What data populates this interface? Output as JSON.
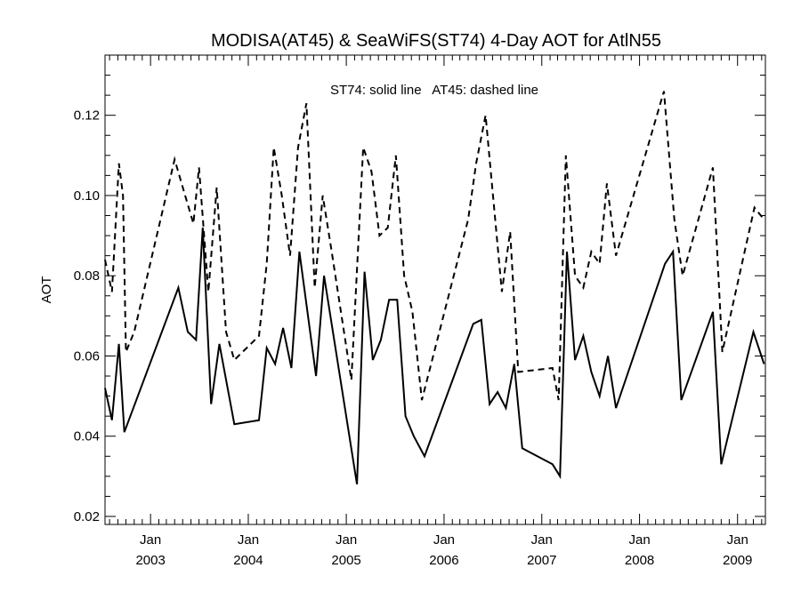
{
  "chart_data": {
    "type": "line",
    "title": "MODISA(AT45) & SeaWiFS(ST74) 4-Day AOT for AtlN55",
    "ylabel": "AOT",
    "xlabel": "",
    "annotation": "ST74: solid line   AT45: dashed line",
    "x_range": [
      "2002-07-15",
      "2009-04-15"
    ],
    "ylim": [
      0.018,
      0.135
    ],
    "y_ticks": [
      0.02,
      0.04,
      0.06,
      0.08,
      0.1,
      0.12
    ],
    "y_tick_labels": [
      "0.02",
      "0.04",
      "0.06",
      "0.08",
      "0.10",
      "0.12"
    ],
    "x_ticks": [
      {
        "date": "2003-01-01",
        "month": "Jan",
        "year": "2003"
      },
      {
        "date": "2004-01-01",
        "month": "Jan",
        "year": "2004"
      },
      {
        "date": "2005-01-01",
        "month": "Jan",
        "year": "2005"
      },
      {
        "date": "2006-01-01",
        "month": "Jan",
        "year": "2006"
      },
      {
        "date": "2007-01-01",
        "month": "Jan",
        "year": "2007"
      },
      {
        "date": "2008-01-01",
        "month": "Jan",
        "year": "2008"
      },
      {
        "date": "2009-01-01",
        "month": "Jan",
        "year": "2009"
      }
    ],
    "grid": false,
    "series": [
      {
        "name": "ST74",
        "style": "solid",
        "color": "#000000",
        "points": [
          [
            "2002-07-15",
            0.052
          ],
          [
            "2002-08-10",
            0.044
          ],
          [
            "2002-09-05",
            0.063
          ],
          [
            "2002-09-25",
            0.041
          ],
          [
            "2003-04-15",
            0.077
          ],
          [
            "2003-05-20",
            0.066
          ],
          [
            "2003-06-20",
            0.064
          ],
          [
            "2003-07-15",
            0.092
          ],
          [
            "2003-08-15",
            0.048
          ],
          [
            "2003-09-15",
            0.063
          ],
          [
            "2003-11-10",
            0.043
          ],
          [
            "2004-02-10",
            0.044
          ],
          [
            "2004-03-10",
            0.062
          ],
          [
            "2004-04-10",
            0.058
          ],
          [
            "2004-05-10",
            0.067
          ],
          [
            "2004-06-10",
            0.057
          ],
          [
            "2004-07-10",
            0.086
          ],
          [
            "2004-09-10",
            0.055
          ],
          [
            "2004-10-10",
            0.08
          ],
          [
            "2005-02-10",
            0.028
          ],
          [
            "2005-03-10",
            0.081
          ],
          [
            "2005-04-10",
            0.059
          ],
          [
            "2005-05-10",
            0.064
          ],
          [
            "2005-06-10",
            0.074
          ],
          [
            "2005-07-10",
            0.074
          ],
          [
            "2005-08-10",
            0.045
          ],
          [
            "2005-09-10",
            0.04
          ],
          [
            "2005-10-20",
            0.035
          ],
          [
            "2006-04-20",
            0.068
          ],
          [
            "2006-05-20",
            0.069
          ],
          [
            "2006-06-20",
            0.048
          ],
          [
            "2006-07-20",
            0.051
          ],
          [
            "2006-08-20",
            0.047
          ],
          [
            "2006-09-20",
            0.058
          ],
          [
            "2006-10-20",
            0.037
          ],
          [
            "2007-02-10",
            0.033
          ],
          [
            "2007-03-10",
            0.03
          ],
          [
            "2007-04-05",
            0.086
          ],
          [
            "2007-05-05",
            0.059
          ],
          [
            "2007-06-05",
            0.065
          ],
          [
            "2007-07-05",
            0.056
          ],
          [
            "2007-08-05",
            0.05
          ],
          [
            "2007-09-05",
            0.06
          ],
          [
            "2007-10-05",
            0.047
          ],
          [
            "2008-04-05",
            0.083
          ],
          [
            "2008-05-05",
            0.086
          ],
          [
            "2008-06-05",
            0.049
          ],
          [
            "2008-10-01",
            0.071
          ],
          [
            "2008-11-01",
            0.033
          ],
          [
            "2009-03-01",
            0.066
          ],
          [
            "2009-04-10",
            0.058
          ]
        ]
      },
      {
        "name": "AT45",
        "style": "dashed",
        "color": "#000000",
        "points": [
          [
            "2002-07-15",
            0.084
          ],
          [
            "2002-08-10",
            0.076
          ],
          [
            "2002-09-05",
            0.108
          ],
          [
            "2002-09-20",
            0.1
          ],
          [
            "2002-10-01",
            0.061
          ],
          [
            "2002-11-01",
            0.066
          ],
          [
            "2003-04-01",
            0.109
          ],
          [
            "2003-05-10",
            0.1
          ],
          [
            "2003-06-10",
            0.093
          ],
          [
            "2003-07-01",
            0.107
          ],
          [
            "2003-08-05",
            0.076
          ],
          [
            "2003-09-05",
            0.102
          ],
          [
            "2003-10-10",
            0.066
          ],
          [
            "2003-11-10",
            0.059
          ],
          [
            "2004-02-10",
            0.065
          ],
          [
            "2004-03-10",
            0.083
          ],
          [
            "2004-04-05",
            0.112
          ],
          [
            "2004-05-05",
            0.1
          ],
          [
            "2004-06-05",
            0.085
          ],
          [
            "2004-07-05",
            0.112
          ],
          [
            "2004-08-05",
            0.123
          ],
          [
            "2004-09-05",
            0.077
          ],
          [
            "2004-10-05",
            0.1
          ],
          [
            "2004-11-05",
            0.087
          ],
          [
            "2005-01-20",
            0.054
          ],
          [
            "2005-03-05",
            0.112
          ],
          [
            "2005-04-05",
            0.106
          ],
          [
            "2005-05-05",
            0.09
          ],
          [
            "2005-06-05",
            0.092
          ],
          [
            "2005-07-05",
            0.11
          ],
          [
            "2005-08-05",
            0.08
          ],
          [
            "2005-09-05",
            0.071
          ],
          [
            "2005-10-10",
            0.049
          ],
          [
            "2006-04-01",
            0.094
          ],
          [
            "2006-05-01",
            0.108
          ],
          [
            "2006-06-05",
            0.12
          ],
          [
            "2006-08-05",
            0.076
          ],
          [
            "2006-09-05",
            0.091
          ],
          [
            "2006-10-05",
            0.056
          ],
          [
            "2007-02-10",
            0.057
          ],
          [
            "2007-03-05",
            0.049
          ],
          [
            "2007-04-01",
            0.11
          ],
          [
            "2007-05-05",
            0.08
          ],
          [
            "2007-06-05",
            0.077
          ],
          [
            "2007-07-05",
            0.086
          ],
          [
            "2007-08-05",
            0.083
          ],
          [
            "2007-09-01",
            0.103
          ],
          [
            "2007-10-05",
            0.085
          ],
          [
            "2008-04-01",
            0.126
          ],
          [
            "2008-05-10",
            0.094
          ],
          [
            "2008-06-10",
            0.08
          ],
          [
            "2008-10-01",
            0.107
          ],
          [
            "2008-11-05",
            0.061
          ],
          [
            "2009-03-05",
            0.097
          ],
          [
            "2009-04-10",
            0.094
          ]
        ]
      }
    ]
  }
}
